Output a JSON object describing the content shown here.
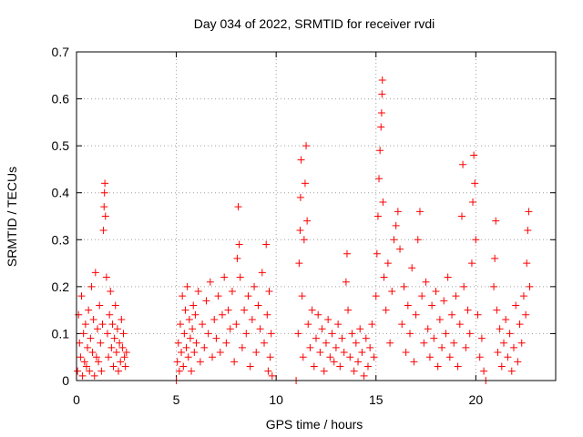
{
  "chart_data": {
    "type": "scatter",
    "title": "Day 034 of 2022, SRMTID for receiver rvdi",
    "xlabel": "GPS time / hours",
    "ylabel": "SRMTID / TECUs",
    "xlim": [
      0,
      24
    ],
    "ylim": [
      0,
      0.7
    ],
    "xticks": [
      0,
      5,
      10,
      15,
      20
    ],
    "yticks": [
      0,
      0.1,
      0.2,
      0.3,
      0.4,
      0.5,
      0.6,
      0.7
    ],
    "xtick_labels": [
      "0",
      "5",
      "10",
      "15",
      "20"
    ],
    "ytick_labels": [
      "0",
      "0.1",
      "0.2",
      "0.3",
      "0.4",
      "0.5",
      "0.6",
      "0.7"
    ],
    "grid": true,
    "marker": "+",
    "color": "#ff0000",
    "series": [
      {
        "name": "SRMTID",
        "points": [
          [
            0.05,
            0.02
          ],
          [
            0.1,
            0.14
          ],
          [
            0.15,
            0.08
          ],
          [
            0.2,
            0.05
          ],
          [
            0.25,
            0.18
          ],
          [
            0.3,
            0.01
          ],
          [
            0.35,
            0.1
          ],
          [
            0.4,
            0.04
          ],
          [
            0.45,
            0.12
          ],
          [
            0.5,
            0.03
          ],
          [
            0.55,
            0.07
          ],
          [
            0.6,
            0.15
          ],
          [
            0.65,
            0.02
          ],
          [
            0.7,
            0.09
          ],
          [
            0.75,
            0.2
          ],
          [
            0.8,
            0.06
          ],
          [
            0.85,
            0.13
          ],
          [
            0.9,
            0.01
          ],
          [
            0.95,
            0.23
          ],
          [
            1.0,
            0.05
          ],
          [
            1.05,
            0.11
          ],
          [
            1.1,
            0.04
          ],
          [
            1.15,
            0.16
          ],
          [
            1.2,
            0.08
          ],
          [
            1.25,
            0.02
          ],
          [
            1.3,
            0.12
          ],
          [
            1.35,
            0.32
          ],
          [
            1.38,
            0.37
          ],
          [
            1.4,
            0.4
          ],
          [
            1.42,
            0.42
          ],
          [
            1.45,
            0.35
          ],
          [
            1.5,
            0.22
          ],
          [
            1.55,
            0.1
          ],
          [
            1.6,
            0.05
          ],
          [
            1.65,
            0.14
          ],
          [
            1.7,
            0.19
          ],
          [
            1.75,
            0.07
          ],
          [
            1.8,
            0.12
          ],
          [
            1.85,
            0.03
          ],
          [
            1.9,
            0.09
          ],
          [
            1.95,
            0.16
          ],
          [
            2.0,
            0.06
          ],
          [
            2.05,
            0.11
          ],
          [
            2.1,
            0.02
          ],
          [
            2.15,
            0.08
          ],
          [
            2.2,
            0.04
          ],
          [
            2.25,
            0.13
          ],
          [
            2.3,
            0.07
          ],
          [
            2.35,
            0.1
          ],
          [
            2.4,
            0.05
          ],
          [
            2.45,
            0.03
          ],
          [
            2.5,
            0.06
          ],
          [
            5.0,
            0.0
          ],
          [
            5.05,
            0.04
          ],
          [
            5.1,
            0.08
          ],
          [
            5.15,
            0.02
          ],
          [
            5.2,
            0.12
          ],
          [
            5.25,
            0.06
          ],
          [
            5.3,
            0.18
          ],
          [
            5.35,
            0.03
          ],
          [
            5.4,
            0.1
          ],
          [
            5.45,
            0.15
          ],
          [
            5.5,
            0.07
          ],
          [
            5.55,
            0.2
          ],
          [
            5.6,
            0.05
          ],
          [
            5.65,
            0.13
          ],
          [
            5.7,
            0.09
          ],
          [
            5.75,
            0.02
          ],
          [
            5.8,
            0.11
          ],
          [
            5.85,
            0.16
          ],
          [
            5.9,
            0.06
          ],
          [
            5.95,
            0.14
          ],
          [
            6.0,
            0.08
          ],
          [
            6.1,
            0.19
          ],
          [
            6.2,
            0.04
          ],
          [
            6.3,
            0.12
          ],
          [
            6.4,
            0.07
          ],
          [
            6.5,
            0.17
          ],
          [
            6.6,
            0.1
          ],
          [
            6.7,
            0.21
          ],
          [
            6.8,
            0.05
          ],
          [
            6.9,
            0.13
          ],
          [
            7.0,
            0.09
          ],
          [
            7.1,
            0.18
          ],
          [
            7.2,
            0.06
          ],
          [
            7.3,
            0.14
          ],
          [
            7.4,
            0.22
          ],
          [
            7.5,
            0.08
          ],
          [
            7.6,
            0.15
          ],
          [
            7.7,
            0.11
          ],
          [
            7.8,
            0.19
          ],
          [
            7.9,
            0.04
          ],
          [
            8.0,
            0.12
          ],
          [
            8.05,
            0.26
          ],
          [
            8.1,
            0.37
          ],
          [
            8.15,
            0.29
          ],
          [
            8.2,
            0.22
          ],
          [
            8.3,
            0.07
          ],
          [
            8.4,
            0.15
          ],
          [
            8.5,
            0.1
          ],
          [
            8.6,
            0.18
          ],
          [
            8.7,
            0.03
          ],
          [
            8.8,
            0.13
          ],
          [
            8.9,
            0.2
          ],
          [
            9.0,
            0.06
          ],
          [
            9.1,
            0.16
          ],
          [
            9.2,
            0.11
          ],
          [
            9.3,
            0.23
          ],
          [
            9.4,
            0.08
          ],
          [
            9.5,
            0.29
          ],
          [
            9.55,
            0.14
          ],
          [
            9.6,
            0.02
          ],
          [
            9.65,
            0.19
          ],
          [
            9.7,
            0.05
          ],
          [
            9.75,
            0.1
          ],
          [
            9.8,
            0.01
          ],
          [
            11.0,
            0.0
          ],
          [
            11.1,
            0.1
          ],
          [
            11.15,
            0.25
          ],
          [
            11.2,
            0.32
          ],
          [
            11.22,
            0.39
          ],
          [
            11.25,
            0.47
          ],
          [
            11.3,
            0.18
          ],
          [
            11.35,
            0.05
          ],
          [
            11.4,
            0.3
          ],
          [
            11.45,
            0.42
          ],
          [
            11.5,
            0.5
          ],
          [
            11.55,
            0.34
          ],
          [
            11.6,
            0.12
          ],
          [
            11.7,
            0.07
          ],
          [
            11.8,
            0.15
          ],
          [
            11.9,
            0.03
          ],
          [
            12.0,
            0.09
          ],
          [
            12.1,
            0.14
          ],
          [
            12.2,
            0.06
          ],
          [
            12.3,
            0.11
          ],
          [
            12.4,
            0.02
          ],
          [
            12.5,
            0.08
          ],
          [
            12.6,
            0.13
          ],
          [
            12.7,
            0.05
          ],
          [
            12.8,
            0.1
          ],
          [
            12.9,
            0.04
          ],
          [
            13.0,
            0.07
          ],
          [
            13.1,
            0.12
          ],
          [
            13.2,
            0.03
          ],
          [
            13.3,
            0.09
          ],
          [
            13.4,
            0.06
          ],
          [
            13.5,
            0.21
          ],
          [
            13.55,
            0.27
          ],
          [
            13.6,
            0.15
          ],
          [
            13.7,
            0.05
          ],
          [
            13.8,
            0.1
          ],
          [
            13.9,
            0.02
          ],
          [
            14.0,
            0.08
          ],
          [
            14.1,
            0.04
          ],
          [
            14.2,
            0.11
          ],
          [
            14.3,
            0.06
          ],
          [
            14.4,
            0.01
          ],
          [
            14.5,
            0.09
          ],
          [
            14.6,
            0.03
          ],
          [
            14.7,
            0.07
          ],
          [
            14.8,
            0.12
          ],
          [
            14.9,
            0.05
          ],
          [
            15.0,
            0.18
          ],
          [
            15.05,
            0.27
          ],
          [
            15.1,
            0.35
          ],
          [
            15.15,
            0.43
          ],
          [
            15.2,
            0.49
          ],
          [
            15.25,
            0.54
          ],
          [
            15.28,
            0.57
          ],
          [
            15.3,
            0.61
          ],
          [
            15.32,
            0.64
          ],
          [
            15.35,
            0.38
          ],
          [
            15.4,
            0.22
          ],
          [
            15.5,
            0.15
          ],
          [
            15.6,
            0.25
          ],
          [
            15.7,
            0.08
          ],
          [
            15.8,
            0.19
          ],
          [
            15.9,
            0.3
          ],
          [
            16.0,
            0.33
          ],
          [
            16.1,
            0.36
          ],
          [
            16.2,
            0.28
          ],
          [
            16.3,
            0.12
          ],
          [
            16.4,
            0.2
          ],
          [
            16.5,
            0.06
          ],
          [
            16.6,
            0.16
          ],
          [
            16.7,
            0.1
          ],
          [
            16.8,
            0.24
          ],
          [
            16.9,
            0.04
          ],
          [
            17.0,
            0.14
          ],
          [
            17.1,
            0.3
          ],
          [
            17.2,
            0.36
          ],
          [
            17.3,
            0.18
          ],
          [
            17.4,
            0.08
          ],
          [
            17.5,
            0.21
          ],
          [
            17.6,
            0.11
          ],
          [
            17.7,
            0.05
          ],
          [
            17.8,
            0.16
          ],
          [
            17.9,
            0.09
          ],
          [
            18.0,
            0.19
          ],
          [
            18.1,
            0.03
          ],
          [
            18.2,
            0.13
          ],
          [
            18.3,
            0.07
          ],
          [
            18.4,
            0.17
          ],
          [
            18.5,
            0.1
          ],
          [
            18.6,
            0.22
          ],
          [
            18.7,
            0.05
          ],
          [
            18.8,
            0.14
          ],
          [
            18.9,
            0.08
          ],
          [
            19.0,
            0.18
          ],
          [
            19.1,
            0.03
          ],
          [
            19.2,
            0.12
          ],
          [
            19.3,
            0.35
          ],
          [
            19.35,
            0.46
          ],
          [
            19.4,
            0.2
          ],
          [
            19.5,
            0.07
          ],
          [
            19.6,
            0.15
          ],
          [
            19.7,
            0.1
          ],
          [
            19.8,
            0.25
          ],
          [
            19.85,
            0.38
          ],
          [
            19.9,
            0.48
          ],
          [
            19.95,
            0.42
          ],
          [
            20.0,
            0.3
          ],
          [
            20.1,
            0.14
          ],
          [
            20.2,
            0.05
          ],
          [
            20.3,
            0.09
          ],
          [
            20.4,
            0.02
          ],
          [
            20.5,
            0.0
          ],
          [
            20.9,
            0.2
          ],
          [
            20.95,
            0.26
          ],
          [
            21.0,
            0.34
          ],
          [
            21.05,
            0.15
          ],
          [
            21.1,
            0.06
          ],
          [
            21.2,
            0.11
          ],
          [
            21.3,
            0.03
          ],
          [
            21.4,
            0.08
          ],
          [
            21.5,
            0.13
          ],
          [
            21.6,
            0.05
          ],
          [
            21.7,
            0.1
          ],
          [
            21.8,
            0.02
          ],
          [
            21.9,
            0.07
          ],
          [
            22.0,
            0.16
          ],
          [
            22.1,
            0.04
          ],
          [
            22.2,
            0.12
          ],
          [
            22.3,
            0.08
          ],
          [
            22.4,
            0.18
          ],
          [
            22.5,
            0.14
          ],
          [
            22.55,
            0.25
          ],
          [
            22.6,
            0.32
          ],
          [
            22.65,
            0.36
          ],
          [
            22.7,
            0.2
          ]
        ]
      }
    ]
  }
}
